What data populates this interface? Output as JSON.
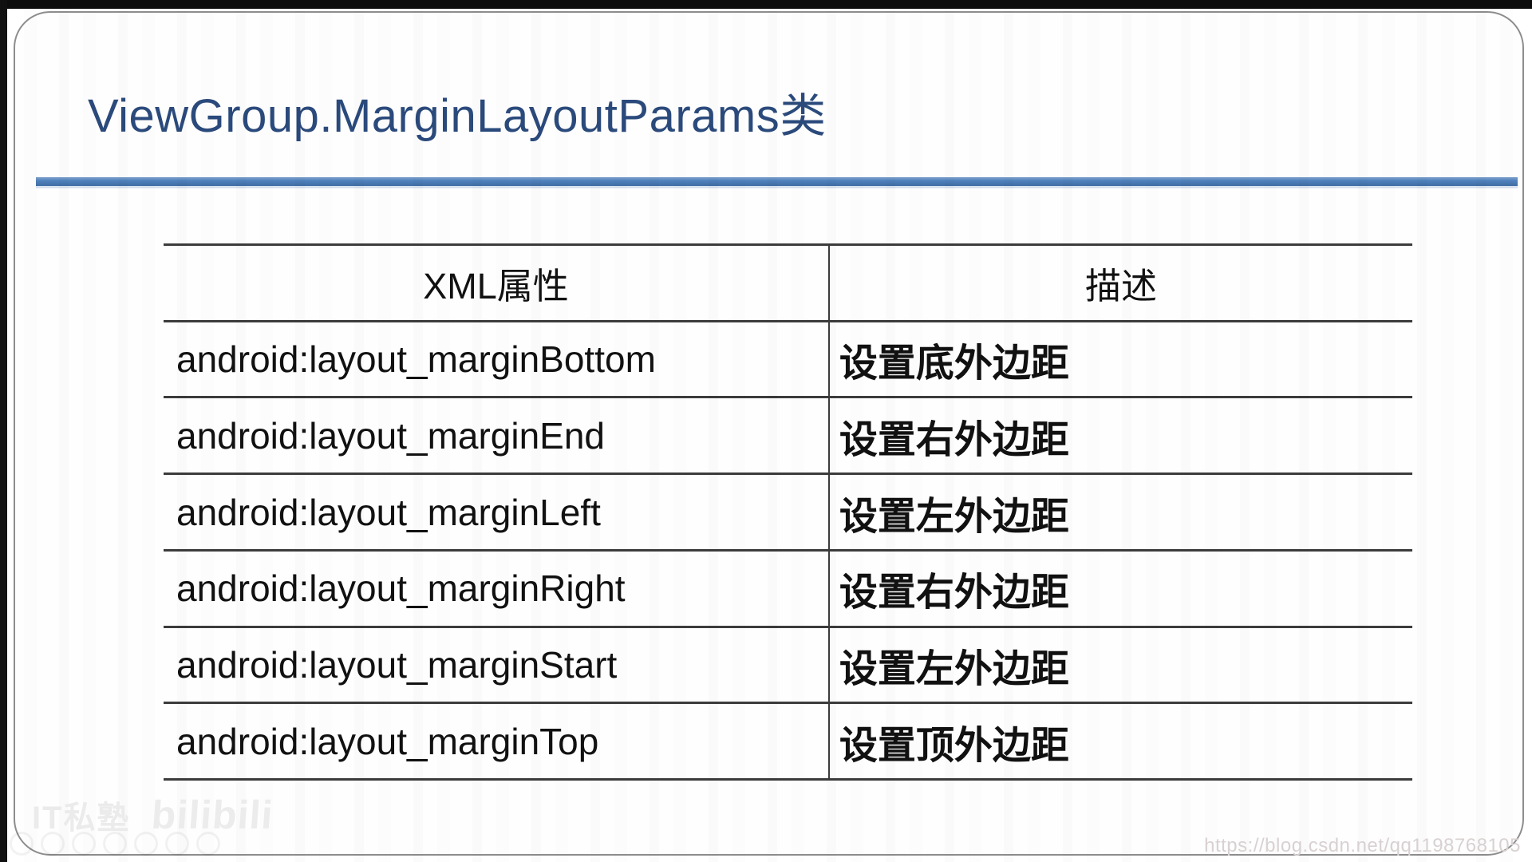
{
  "slide": {
    "title": "ViewGroup.MarginLayoutParams类",
    "title_color": "#2b4a7c",
    "accent_rule_color": "#4f81bd"
  },
  "table": {
    "headers": [
      "XML属性",
      "描述"
    ],
    "border_color": "#3c3c3c",
    "rows": [
      {
        "attr": "android:layout_marginBottom",
        "desc": "设置底外边距"
      },
      {
        "attr": "android:layout_marginEnd",
        "desc": "设置右外边距"
      },
      {
        "attr": "android:layout_marginLeft",
        "desc": "设置左外边距"
      },
      {
        "attr": "android:layout_marginRight",
        "desc": "设置右外边距"
      },
      {
        "attr": "android:layout_marginStart",
        "desc": "设置左外边距"
      },
      {
        "attr": "android:layout_marginTop",
        "desc": "设置顶外边距"
      }
    ]
  },
  "watermarks": {
    "logo_text": "IT私塾",
    "bilibili_text": "bilibili",
    "url": "https://blog.csdn.net/qq1198768105"
  }
}
